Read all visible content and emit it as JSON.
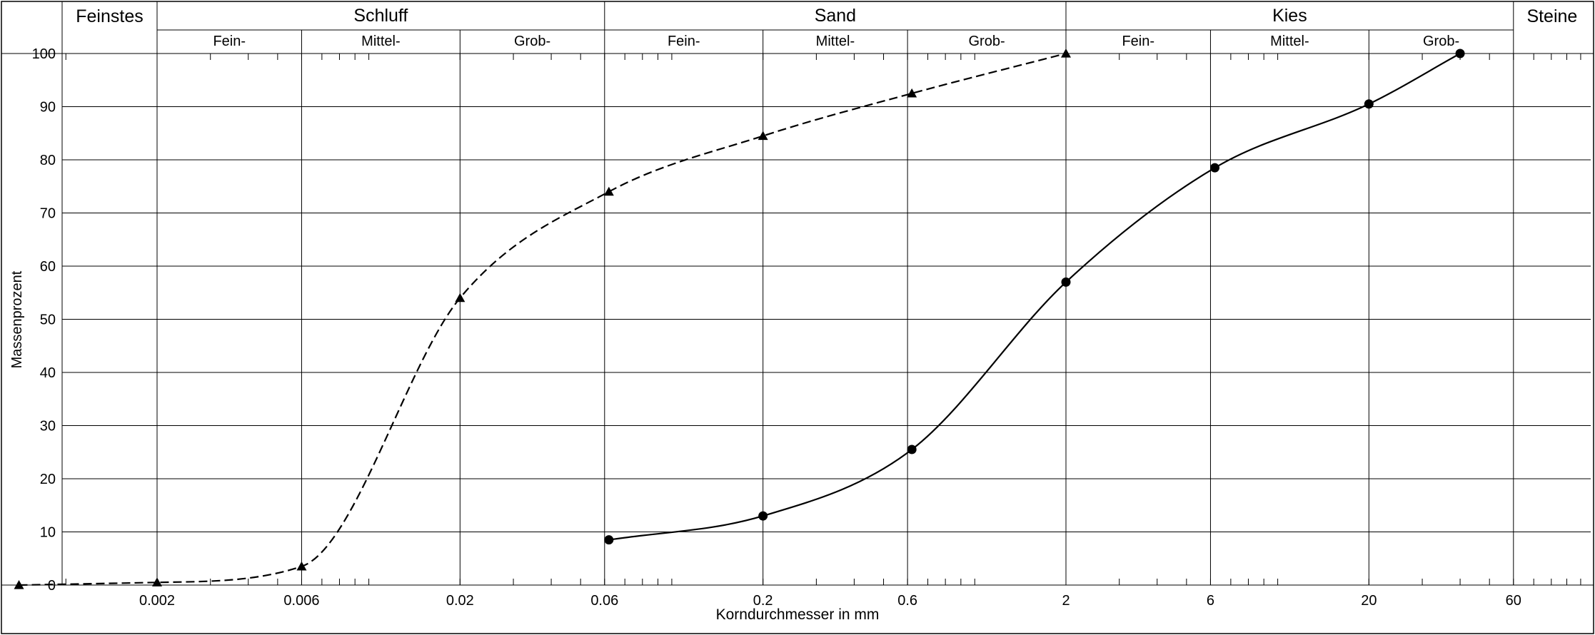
{
  "chart_data": {
    "type": "line",
    "xlabel": "Korndurchmesser in mm",
    "ylabel": "Massenprozent",
    "x_scale": "log",
    "xlim": [
      0.0006,
      200
    ],
    "ylim": [
      0,
      100
    ],
    "x_ticks": [
      {
        "value": 0.002,
        "label": "0.002"
      },
      {
        "value": 0.006,
        "label": "0.006"
      },
      {
        "value": 0.02,
        "label": "0.02"
      },
      {
        "value": 0.06,
        "label": "0.06"
      },
      {
        "value": 0.2,
        "label": "0.2"
      },
      {
        "value": 0.6,
        "label": "0.6"
      },
      {
        "value": 2,
        "label": "2"
      },
      {
        "value": 6,
        "label": "6"
      },
      {
        "value": 20,
        "label": "20"
      },
      {
        "value": 60,
        "label": "60"
      }
    ],
    "y_ticks": [
      0,
      10,
      20,
      30,
      40,
      50,
      60,
      70,
      80,
      90,
      100
    ],
    "grid": true,
    "soil_classes": [
      {
        "name": "Feinstes",
        "from": 0.0006,
        "to": 0.002,
        "subdivisions": []
      },
      {
        "name": "Schluff",
        "from": 0.002,
        "to": 0.06,
        "subdivisions": [
          {
            "name": "Fein-",
            "from": 0.002,
            "to": 0.006
          },
          {
            "name": "Mittel-",
            "from": 0.006,
            "to": 0.02
          },
          {
            "name": "Grob-",
            "from": 0.02,
            "to": 0.06
          }
        ]
      },
      {
        "name": "Sand",
        "from": 0.06,
        "to": 2,
        "subdivisions": [
          {
            "name": "Fein-",
            "from": 0.06,
            "to": 0.2
          },
          {
            "name": "Mittel-",
            "from": 0.2,
            "to": 0.6
          },
          {
            "name": "Grob-",
            "from": 0.6,
            "to": 2
          }
        ]
      },
      {
        "name": "Kies",
        "from": 2,
        "to": 60,
        "subdivisions": [
          {
            "name": "Fein-",
            "from": 2,
            "to": 6
          },
          {
            "name": "Mittel-",
            "from": 6,
            "to": 20
          },
          {
            "name": "Grob-",
            "from": 20,
            "to": 60
          }
        ]
      },
      {
        "name": "Steine",
        "from": 60,
        "to": 200,
        "subdivisions": []
      }
    ],
    "series": [
      {
        "style": "dashed",
        "marker": "triangle",
        "color": "#000000",
        "points": [
          {
            "x": 0.0007,
            "y": 0
          },
          {
            "x": 0.002,
            "y": 0.5
          },
          {
            "x": 0.006,
            "y": 3.5
          },
          {
            "x": 0.02,
            "y": 54
          },
          {
            "x": 0.062,
            "y": 74
          },
          {
            "x": 0.2,
            "y": 84.5
          },
          {
            "x": 0.62,
            "y": 92.5
          },
          {
            "x": 2,
            "y": 100
          }
        ]
      },
      {
        "style": "solid",
        "marker": "circle",
        "color": "#000000",
        "points": [
          {
            "x": 0.062,
            "y": 8.5
          },
          {
            "x": 0.2,
            "y": 13
          },
          {
            "x": 0.62,
            "y": 25.5
          },
          {
            "x": 2,
            "y": 57
          },
          {
            "x": 6.2,
            "y": 78.5
          },
          {
            "x": 20,
            "y": 90.5
          },
          {
            "x": 40,
            "y": 100
          }
        ]
      }
    ]
  }
}
